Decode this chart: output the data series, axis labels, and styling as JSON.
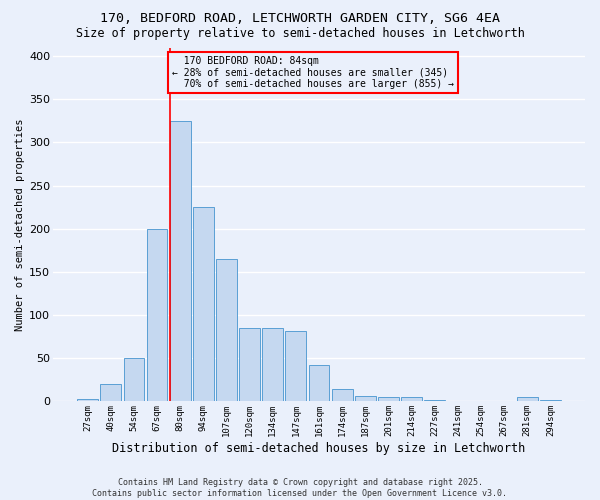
{
  "title_line1": "170, BEDFORD ROAD, LETCHWORTH GARDEN CITY, SG6 4EA",
  "title_line2": "Size of property relative to semi-detached houses in Letchworth",
  "xlabel": "Distribution of semi-detached houses by size in Letchworth",
  "ylabel": "Number of semi-detached properties",
  "categories": [
    "27sqm",
    "40sqm",
    "54sqm",
    "67sqm",
    "80sqm",
    "94sqm",
    "107sqm",
    "120sqm",
    "134sqm",
    "147sqm",
    "161sqm",
    "174sqm",
    "187sqm",
    "201sqm",
    "214sqm",
    "227sqm",
    "241sqm",
    "254sqm",
    "267sqm",
    "281sqm",
    "294sqm"
  ],
  "values": [
    3,
    20,
    50,
    200,
    325,
    225,
    165,
    85,
    85,
    82,
    42,
    14,
    6,
    5,
    5,
    2,
    1,
    1,
    1,
    5,
    2
  ],
  "bar_color": "#c5d8f0",
  "bar_edge_color": "#5a9fd4",
  "highlight_index": 4,
  "highlight_line_color": "#ff0000",
  "property_label": "170 BEDFORD ROAD: 84sqm",
  "pct_smaller": "28%",
  "count_smaller": 345,
  "pct_larger": "70%",
  "count_larger": 855,
  "annotation_box_color": "#ff0000",
  "ylim": [
    0,
    410
  ],
  "yticks": [
    0,
    50,
    100,
    150,
    200,
    250,
    300,
    350,
    400
  ],
  "background_color": "#eaf0fb",
  "grid_color": "#ffffff",
  "footer_line1": "Contains HM Land Registry data © Crown copyright and database right 2025.",
  "footer_line2": "Contains public sector information licensed under the Open Government Licence v3.0."
}
